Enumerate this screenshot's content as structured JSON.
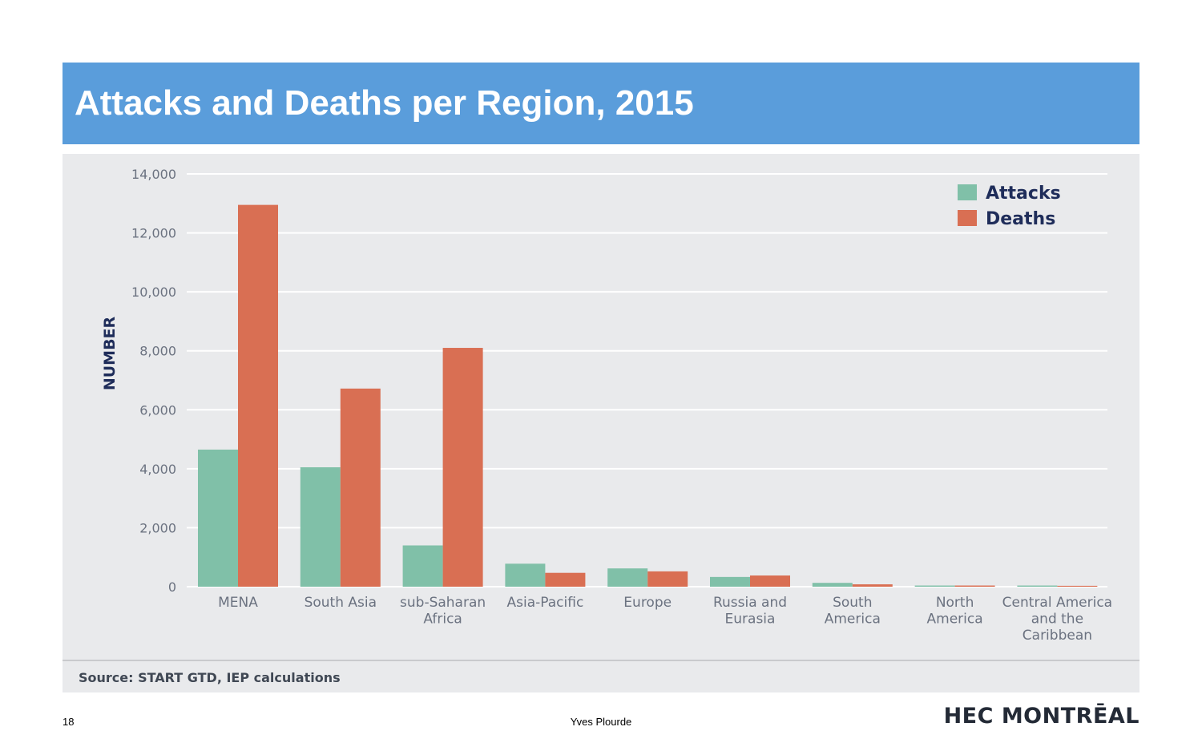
{
  "slide": {
    "title": "Attacks and Deaths per Region, 2015",
    "page_number": "18",
    "author": "Yves Plourde",
    "logo": "HEC MONTRĒAL",
    "source": "Source: START GTD, IEP calculations"
  },
  "colors": {
    "title_bar": "#5a9ddb",
    "attacks": "#80c0a8",
    "deaths": "#d96f53",
    "axis_text": "#6b7280",
    "legend_text": "#1f2d5a"
  },
  "chart_data": {
    "type": "bar",
    "ylabel": "NUMBER",
    "ylim": [
      0,
      14000
    ],
    "yticks": [
      "0",
      "2,000",
      "4,000",
      "6,000",
      "8,000",
      "10,000",
      "12,000",
      "14,000"
    ],
    "ytick_values": [
      0,
      2000,
      4000,
      6000,
      8000,
      10000,
      12000,
      14000
    ],
    "grid": true,
    "legend_position": "top-right",
    "categories": [
      [
        "MENA"
      ],
      [
        "South  Asia"
      ],
      [
        "sub-Saharan",
        "Africa"
      ],
      [
        "Asia-Pacific"
      ],
      [
        "Europe"
      ],
      [
        "Russia and",
        "Eurasia"
      ],
      [
        "South",
        "America"
      ],
      [
        "North",
        "America"
      ],
      [
        "Central America",
        "and the",
        "Caribbean"
      ]
    ],
    "series": [
      {
        "name": "Attacks",
        "values": [
          4650,
          4050,
          1400,
          780,
          620,
          330,
          130,
          40,
          40
        ]
      },
      {
        "name": "Deaths",
        "values": [
          12950,
          6720,
          8100,
          470,
          520,
          380,
          80,
          40,
          30
        ]
      }
    ]
  }
}
